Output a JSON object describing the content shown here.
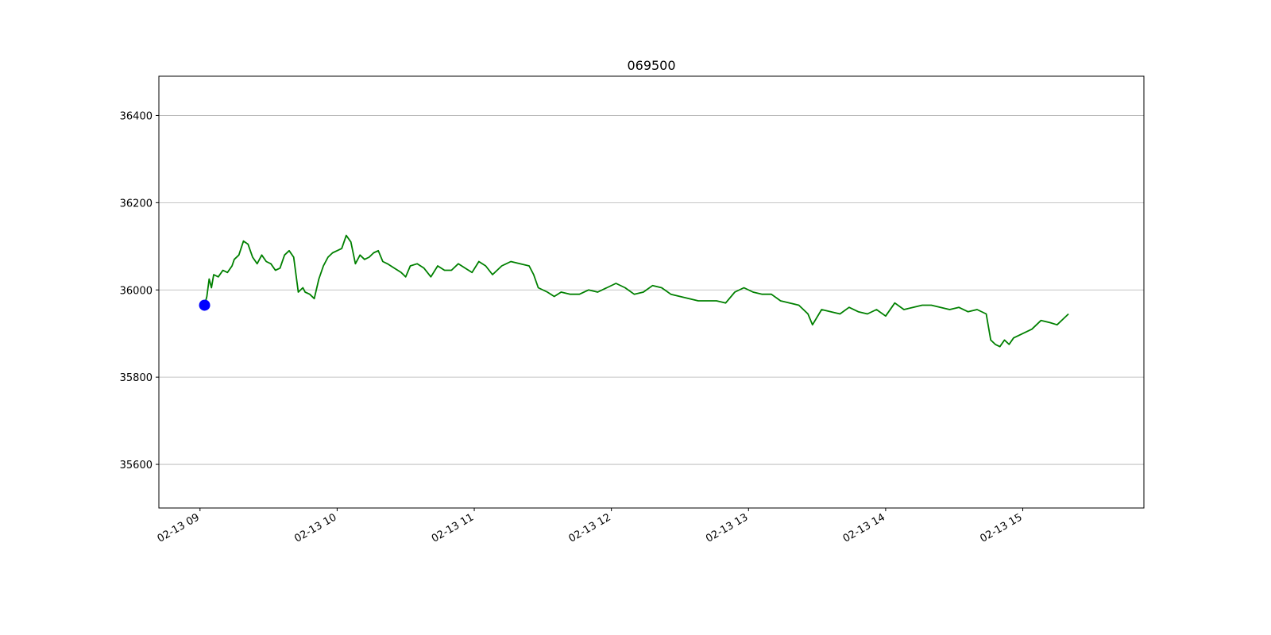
{
  "chart_data": {
    "type": "line",
    "title": "069500",
    "xlabel": "",
    "ylabel": "",
    "ylim": [
      35500,
      36490
    ],
    "grid": {
      "y": true,
      "x": false
    },
    "y_ticks": [
      35600,
      35800,
      36000,
      36200,
      36400
    ],
    "x_ticks": [
      {
        "value": "2025-02-13T09:00",
        "label": "02-13 09"
      },
      {
        "value": "2025-02-13T10:00",
        "label": "02-13 10"
      },
      {
        "value": "2025-02-13T11:00",
        "label": "02-13 11"
      },
      {
        "value": "2025-02-13T12:00",
        "label": "02-13 12"
      },
      {
        "value": "2025-02-13T13:00",
        "label": "02-13 13"
      },
      {
        "value": "2025-02-13T14:00",
        "label": "02-13 14"
      },
      {
        "value": "2025-02-13T15:00",
        "label": "02-13 15"
      }
    ],
    "xlim": [
      "2025-02-13T08:42",
      "2025-02-13T15:53"
    ],
    "series": [
      {
        "color": "#008000",
        "x": [
          "09:02",
          "09:03",
          "09:04",
          "09:05",
          "09:06",
          "09:08",
          "09:10",
          "09:12",
          "09:14",
          "09:15",
          "09:17",
          "09:19",
          "09:21",
          "09:23",
          "09:25",
          "09:27",
          "09:29",
          "09:31",
          "09:33",
          "09:35",
          "09:37",
          "09:39",
          "09:41",
          "09:43",
          "09:45",
          "09:46",
          "09:48",
          "09:50",
          "09:52",
          "09:54",
          "09:56",
          "09:58",
          "10:00",
          "10:02",
          "10:04",
          "10:06",
          "10:08",
          "10:10",
          "10:12",
          "10:14",
          "10:16",
          "10:18",
          "10:20",
          "10:22",
          "10:25",
          "10:28",
          "10:30",
          "10:32",
          "10:35",
          "10:38",
          "10:41",
          "10:44",
          "10:47",
          "10:50",
          "10:53",
          "10:56",
          "10:59",
          "11:02",
          "11:05",
          "11:08",
          "11:12",
          "11:16",
          "11:20",
          "11:24",
          "11:26",
          "11:28",
          "11:32",
          "11:35",
          "11:38",
          "11:42",
          "11:46",
          "11:50",
          "11:54",
          "11:58",
          "12:02",
          "12:06",
          "12:10",
          "12:14",
          "12:18",
          "12:22",
          "12:26",
          "12:30",
          "12:34",
          "12:38",
          "12:42",
          "12:46",
          "12:50",
          "12:54",
          "12:58",
          "13:02",
          "13:06",
          "13:10",
          "13:14",
          "13:18",
          "13:22",
          "13:26",
          "13:28",
          "13:32",
          "13:36",
          "13:40",
          "13:44",
          "13:48",
          "13:52",
          "13:56",
          "14:00",
          "14:04",
          "14:08",
          "14:12",
          "14:16",
          "14:20",
          "14:24",
          "14:28",
          "14:32",
          "14:36",
          "14:40",
          "14:44",
          "14:46",
          "14:48",
          "14:50",
          "14:52",
          "14:54",
          "14:56",
          "14:58",
          "15:00",
          "15:04",
          "15:08",
          "15:12",
          "15:15",
          "15:18",
          "15:20"
        ],
        "values": [
          35965,
          35985,
          36025,
          36005,
          36035,
          36030,
          36045,
          36040,
          36055,
          36070,
          36080,
          36112,
          36105,
          36075,
          36060,
          36080,
          36065,
          36060,
          36045,
          36050,
          36080,
          36090,
          36075,
          35995,
          36005,
          35995,
          35990,
          35980,
          36025,
          36055,
          36075,
          36085,
          36090,
          36095,
          36125,
          36110,
          36060,
          36080,
          36070,
          36075,
          36085,
          36090,
          36065,
          36060,
          36050,
          36040,
          36030,
          36055,
          36060,
          36050,
          36030,
          36055,
          36045,
          36045,
          36060,
          36050,
          36040,
          36065,
          36055,
          36035,
          36055,
          36065,
          36060,
          36055,
          36035,
          36005,
          35995,
          35985,
          35995,
          35990,
          35990,
          36000,
          35995,
          36005,
          36015,
          36005,
          35990,
          35995,
          36010,
          36005,
          35990,
          35985,
          35980,
          35975,
          35975,
          35975,
          35970,
          35995,
          36005,
          35995,
          35990,
          35990,
          35975,
          35970,
          35965,
          35945,
          35920,
          35955,
          35950,
          35945,
          35960,
          35950,
          35945,
          35955,
          35940,
          35970,
          35955,
          35960,
          35965,
          35965,
          35960,
          35955,
          35960,
          35950,
          35955,
          35945,
          35885,
          35875,
          35870,
          35885,
          35875,
          35890,
          35895,
          35900,
          35910,
          35930,
          35925,
          35920,
          35935,
          35945
        ]
      }
    ],
    "marker": {
      "x": "09:02",
      "y": 35965,
      "color": "#0000ff"
    }
  }
}
